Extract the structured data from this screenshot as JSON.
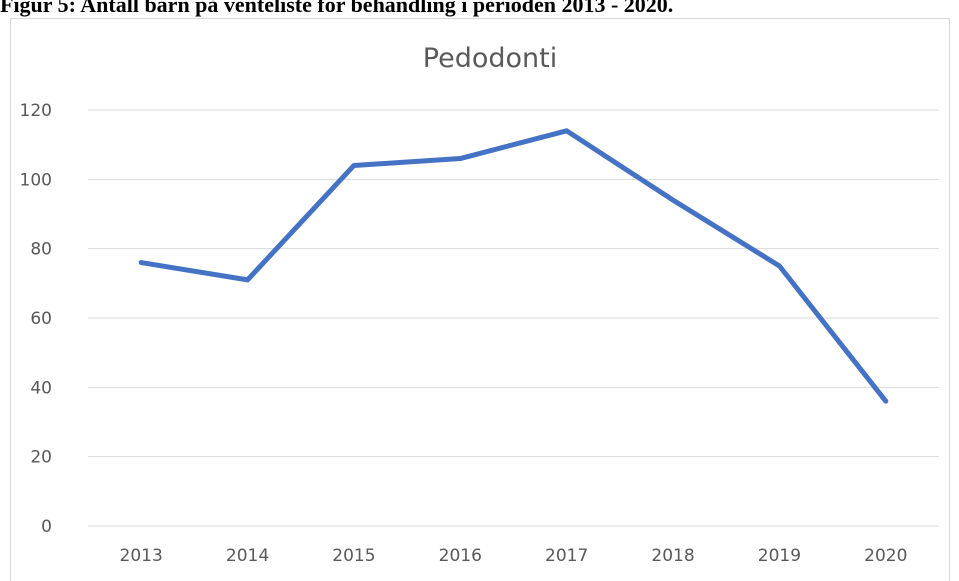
{
  "caption": "Figur 5: Antall barn på venteliste for behandling i perioden 2013 - 2020.",
  "chart_data": {
    "type": "line",
    "title": "Pedodonti",
    "categories": [
      "2013",
      "2014",
      "2015",
      "2016",
      "2017",
      "2018",
      "2019",
      "2020"
    ],
    "series": [
      {
        "name": "Pedodonti",
        "color": "#4472c4",
        "values": [
          76,
          71,
          104,
          106,
          114,
          94,
          75,
          36
        ]
      }
    ],
    "ylim": [
      0,
      120
    ],
    "yticks": [
      0,
      20,
      40,
      60,
      80,
      100,
      120
    ],
    "grid": true
  }
}
